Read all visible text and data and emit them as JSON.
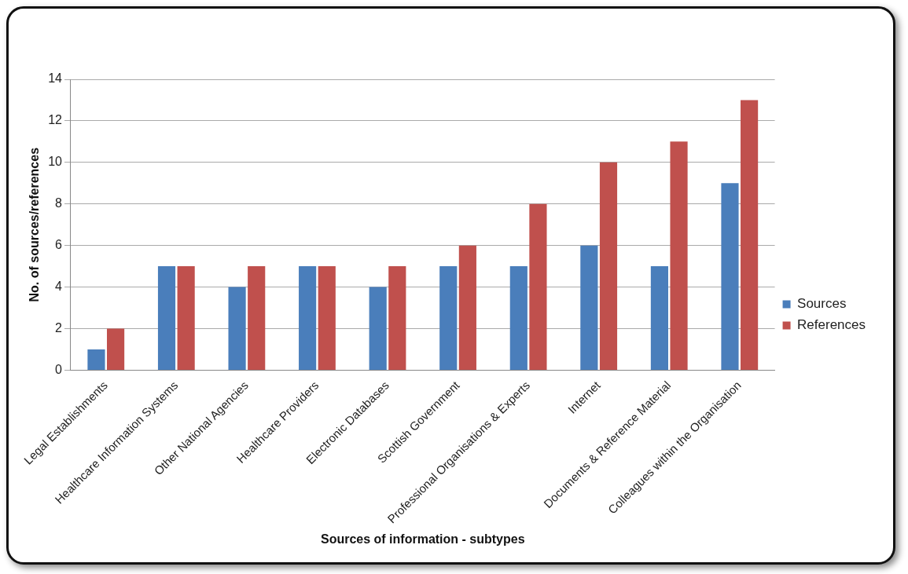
{
  "chart_data": {
    "type": "bar",
    "xlabel": "Sources of information - subtypes",
    "ylabel": "No. of sources/references",
    "categories": [
      "Legal Establishments",
      "Healthcare Information Systems",
      "Other National Agencies",
      "Healthcare Providers",
      "Electronic Databases",
      "Scottish Government",
      "Professional Organisations & Experts",
      "Internet",
      "Documents & Reference Material",
      "Colleagues within the Organisation"
    ],
    "series": [
      {
        "name": "Sources",
        "color": "#4a7ebb",
        "values": [
          1,
          5,
          4,
          5,
          4,
          5,
          5,
          6,
          5,
          9
        ]
      },
      {
        "name": "References",
        "color": "#c0504d",
        "values": [
          2,
          5,
          5,
          5,
          5,
          6,
          8,
          10,
          11,
          13
        ]
      }
    ],
    "ylim": [
      0,
      14
    ],
    "yticks": [
      0,
      2,
      4,
      6,
      8,
      10,
      12,
      14
    ],
    "grid": "y",
    "legend": "right"
  }
}
